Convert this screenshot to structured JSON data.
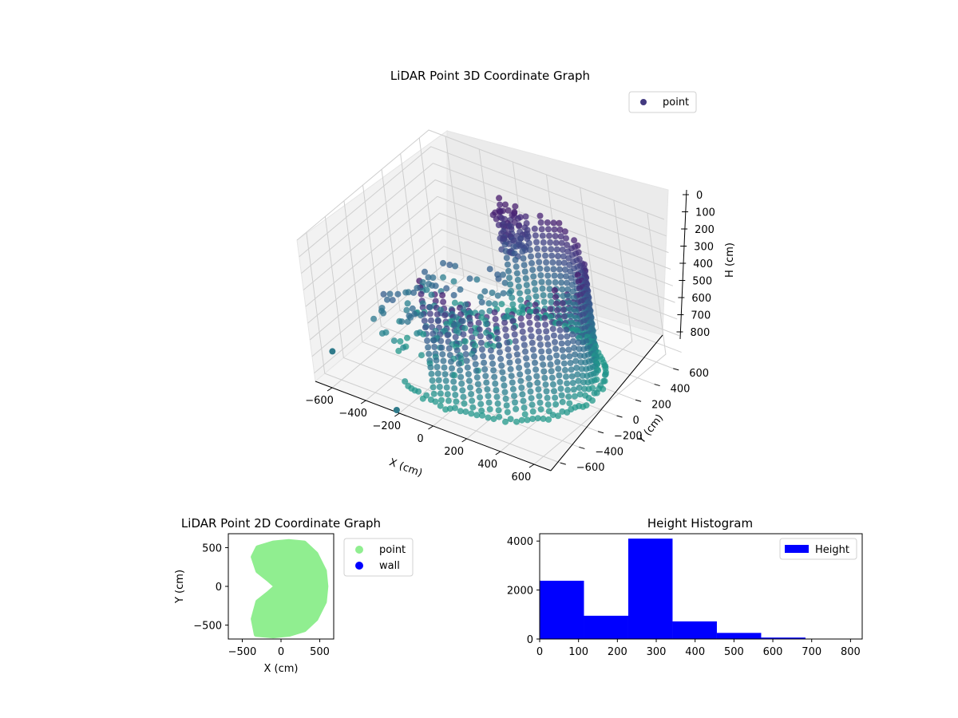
{
  "chart_data": [
    {
      "type": "scatter3d",
      "title": "LiDAR Point 3D Coordinate Graph",
      "xlabel": "X (cm)",
      "ylabel": "Y (cm)",
      "zlabel": "H (cm)",
      "x_ticks": [
        "−600",
        "−400",
        "−200",
        "0",
        "200",
        "400",
        "600"
      ],
      "y_ticks": [
        "−600",
        "−400",
        "−200",
        "0",
        "200",
        "400",
        "600"
      ],
      "z_ticks": [
        "0",
        "100",
        "200",
        "300",
        "400",
        "500",
        "600",
        "700",
        "800"
      ],
      "xlim": [
        -700,
        700
      ],
      "ylim": [
        -700,
        700
      ],
      "zlim": [
        0,
        850
      ],
      "z_inverted": true,
      "grid": true,
      "legend": {
        "position": "upper-right",
        "entries": [
          {
            "name": "point",
            "color": "#433a80"
          }
        ]
      },
      "colormap": "viridis",
      "series": [
        {
          "name": "point",
          "description_of_cloud": "dense ring of points around radius ~450-550 cm on the +X side with heights 0-800 cm, cluster near -X side",
          "sample_points": [
            {
              "x": -700,
              "y": 0,
              "h": 800
            },
            {
              "x": -200,
              "y": -650,
              "h": 800
            },
            {
              "x": 600,
              "y": 0,
              "h": 300
            },
            {
              "x": 400,
              "y": 400,
              "h": 150
            },
            {
              "x": 0,
              "y": 550,
              "h": 120
            },
            {
              "x": -350,
              "y": 450,
              "h": 200
            },
            {
              "x": -450,
              "y": -100,
              "h": 600
            }
          ]
        }
      ]
    },
    {
      "type": "scatter",
      "title": "LiDAR Point 2D Coordinate Graph",
      "xlabel": "X (cm)",
      "ylabel": "Y (cm)",
      "x_ticks": [
        "−500",
        "0",
        "500"
      ],
      "y_ticks": [
        "−500",
        "0",
        "500"
      ],
      "xlim": [
        -680,
        680
      ],
      "ylim": [
        -680,
        680
      ],
      "legend": {
        "position": "outside-right",
        "entries": [
          {
            "name": "point",
            "color": "#90ee90"
          },
          {
            "name": "wall",
            "color": "#0000ff"
          }
        ]
      },
      "series": [
        {
          "name": "point",
          "color": "#90ee90",
          "outline": [
            [
              -300,
              500
            ],
            [
              -100,
              560
            ],
            [
              100,
              580
            ],
            [
              300,
              560
            ],
            [
              450,
              420
            ],
            [
              560,
              200
            ],
            [
              580,
              0
            ],
            [
              560,
              -200
            ],
            [
              450,
              -420
            ],
            [
              300,
              -560
            ],
            [
              100,
              -620
            ],
            [
              -100,
              -640
            ],
            [
              -320,
              -620
            ],
            [
              -360,
              -420
            ],
            [
              -300,
              -200
            ],
            [
              -150,
              -80
            ],
            [
              -60,
              0
            ],
            [
              -150,
              80
            ],
            [
              -300,
              200
            ],
            [
              -360,
              380
            ]
          ]
        },
        {
          "name": "wall",
          "color": "#0000ff",
          "points": []
        }
      ]
    },
    {
      "type": "bar",
      "title": "Height Histogram",
      "xlabel": "",
      "ylabel": "",
      "x_ticks": [
        "0",
        "100",
        "200",
        "300",
        "400",
        "500",
        "600",
        "700",
        "800"
      ],
      "y_ticks": [
        "0",
        "2000",
        "4000"
      ],
      "xlim": [
        0,
        830
      ],
      "ylim": [
        0,
        4300
      ],
      "legend": {
        "position": "upper-right",
        "entries": [
          {
            "name": "Height",
            "color": "#0000ff"
          }
        ]
      },
      "bin_edges": [
        0,
        114,
        228,
        342,
        456,
        570,
        684,
        798
      ],
      "series": [
        {
          "name": "Height",
          "color": "#0000ff",
          "values": [
            2380,
            950,
            4100,
            720,
            250,
            60,
            10
          ]
        }
      ]
    }
  ]
}
